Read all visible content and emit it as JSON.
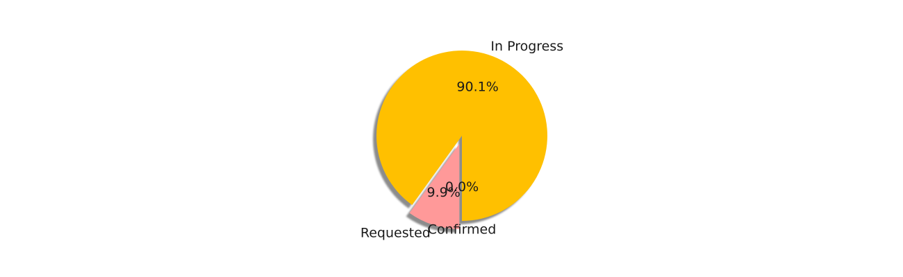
{
  "chart_data": {
    "type": "pie",
    "slices": [
      {
        "label": "In Progress",
        "value": 90.1,
        "pct_label": "90.1%",
        "color": "#FFC000"
      },
      {
        "label": "Requested",
        "value": 9.9,
        "pct_label": "9.9%",
        "color": "#FF9999"
      },
      {
        "label": "Confirmed",
        "value": 0.0,
        "pct_label": "0.0%",
        "color": "#66B3FF"
      }
    ],
    "legend": "none",
    "shadow": true
  }
}
